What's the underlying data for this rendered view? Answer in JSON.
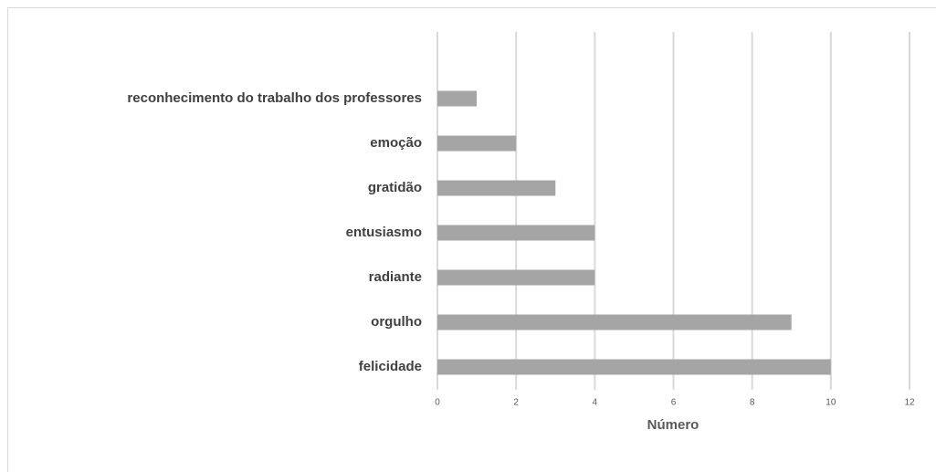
{
  "chart_data": {
    "type": "bar",
    "categories": [
      "reconhecimento do trabalho dos professores",
      "emoção",
      "gratidão",
      "entusiasmo",
      "radiante",
      "orgulho",
      "felicidade"
    ],
    "values": [
      1,
      2,
      3,
      4,
      4,
      9,
      10
    ],
    "color": "#a5a5a5",
    "xlabel": "Número",
    "xlim": [
      0,
      12
    ],
    "xticks": [
      0,
      2,
      4,
      6,
      8,
      10,
      12
    ],
    "grid": true
  }
}
